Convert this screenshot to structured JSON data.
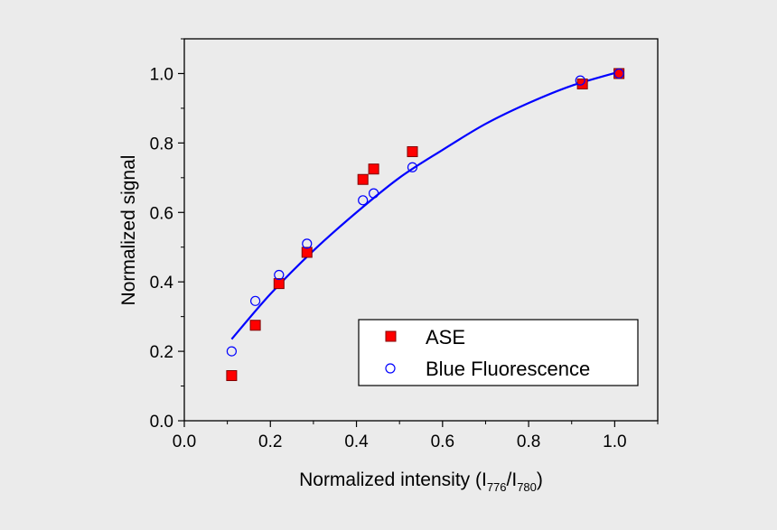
{
  "chart_data": {
    "type": "scatter",
    "title": "",
    "xlabel": {
      "base": "Normalized intensity (I",
      "sub1": "776",
      "mid": "/I",
      "sub2": "780",
      "end": ")"
    },
    "ylabel": "Normalized signal",
    "xlim": [
      0.0,
      1.1
    ],
    "ylim": [
      0.0,
      1.1
    ],
    "xticks": [
      0.0,
      0.2,
      0.4,
      0.6,
      0.8,
      1.0
    ],
    "xtick_labels": [
      "0.0",
      "0.2",
      "0.4",
      "0.6",
      "0.8",
      "1.0"
    ],
    "yticks": [
      0.0,
      0.2,
      0.4,
      0.6,
      0.8,
      1.0
    ],
    "ytick_labels": [
      "0.0",
      "0.2",
      "0.4",
      "0.6",
      "0.8",
      "1.0"
    ],
    "grid": false,
    "legend_position": "bottom-right",
    "series": [
      {
        "name": "ASE",
        "marker": "filled-square",
        "color": "#ff0000",
        "points": [
          [
            0.11,
            0.13
          ],
          [
            0.165,
            0.275
          ],
          [
            0.22,
            0.395
          ],
          [
            0.285,
            0.485
          ],
          [
            0.415,
            0.695
          ],
          [
            0.44,
            0.725
          ],
          [
            0.53,
            0.775
          ],
          [
            0.925,
            0.97
          ],
          [
            1.01,
            1.0
          ]
        ]
      },
      {
        "name": "Blue Fluorescence",
        "marker": "open-circle",
        "color": "#0000ff",
        "points": [
          [
            0.11,
            0.2
          ],
          [
            0.165,
            0.345
          ],
          [
            0.22,
            0.42
          ],
          [
            0.285,
            0.51
          ],
          [
            0.415,
            0.635
          ],
          [
            0.44,
            0.655
          ],
          [
            0.53,
            0.73
          ],
          [
            0.92,
            0.98
          ],
          [
            1.01,
            1.0
          ]
        ]
      }
    ],
    "fit_line": {
      "color": "#0000ff",
      "points": [
        [
          0.11,
          0.235
        ],
        [
          0.2,
          0.365
        ],
        [
          0.3,
          0.49
        ],
        [
          0.4,
          0.6
        ],
        [
          0.5,
          0.7
        ],
        [
          0.6,
          0.78
        ],
        [
          0.7,
          0.855
        ],
        [
          0.8,
          0.915
        ],
        [
          0.9,
          0.965
        ],
        [
          1.01,
          1.005
        ]
      ]
    }
  }
}
